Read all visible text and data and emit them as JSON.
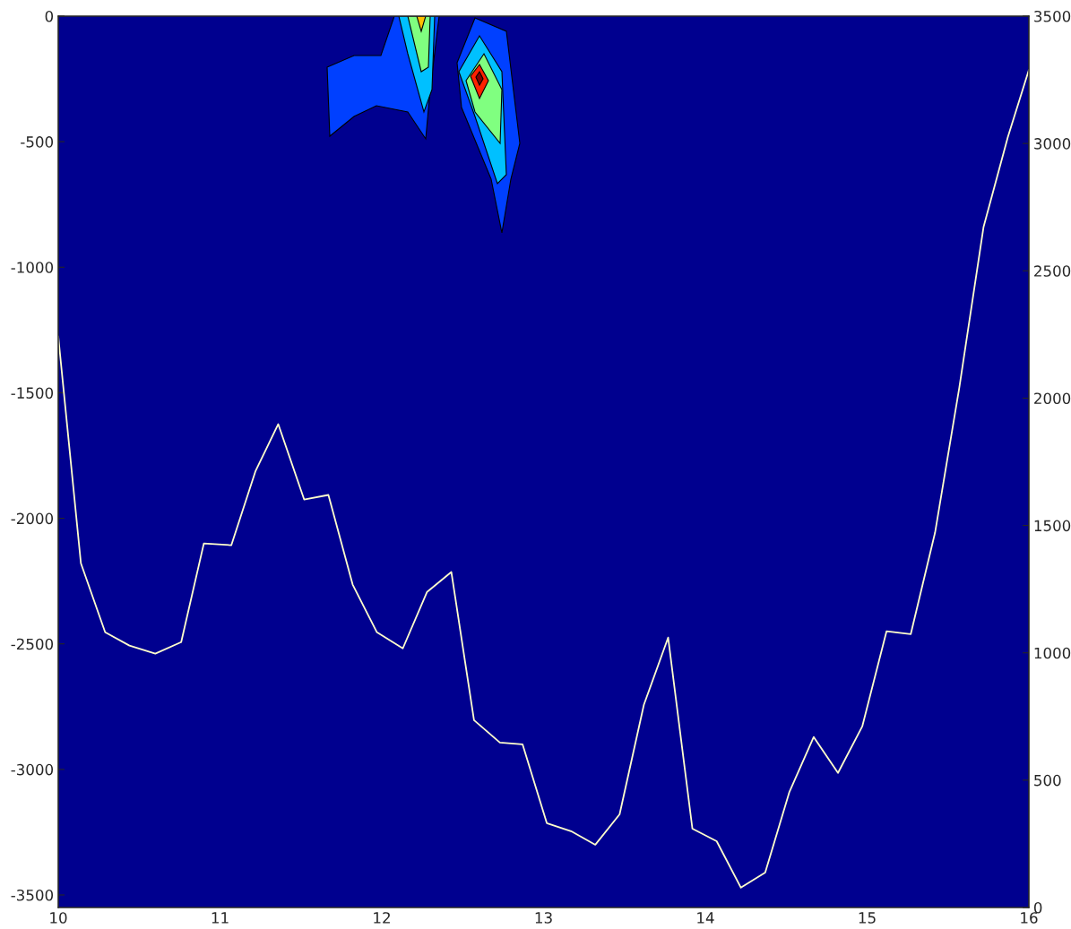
{
  "chart_data": {
    "type": "line",
    "x": [
      10,
      10.14,
      10.29,
      10.44,
      10.6,
      10.76,
      10.9,
      11.07,
      11.22,
      11.36,
      11.52,
      11.67,
      11.82,
      11.97,
      12.13,
      12.28,
      12.43,
      12.57,
      12.73,
      12.87,
      13.02,
      13.17,
      13.32,
      13.47,
      13.62,
      13.77,
      13.92,
      14.07,
      14.22,
      14.37,
      14.52,
      14.67,
      14.82,
      14.97,
      15.12,
      15.27,
      15.42,
      15.57,
      15.72,
      15.87,
      16
    ],
    "series": [
      {
        "color": "#ffffcc",
        "values": [
          -1275,
          -2179,
          -2454,
          -2507,
          -2539,
          -2493,
          -2100,
          -2107,
          -1811,
          -1625,
          -1925,
          -1907,
          -2264,
          -2454,
          -2518,
          -2293,
          -2214,
          -2804,
          -2893,
          -2900,
          -3214,
          -3246,
          -3300,
          -3179,
          -2743,
          -2475,
          -3236,
          -3286,
          -3471,
          -3411,
          -3089,
          -2871,
          -3014,
          -2829,
          -2450,
          -2461,
          -2057,
          -1479,
          -839,
          -482,
          -214
        ]
      }
    ],
    "xlim": [
      10,
      16
    ],
    "xticks": [
      10,
      11,
      12,
      13,
      14,
      15,
      16
    ],
    "ylim": [
      -3550,
      0
    ],
    "yticks": [
      -3500,
      -3000,
      -2500,
      -2000,
      -1500,
      -1000,
      -500,
      0
    ],
    "y2lim": [
      0,
      3500
    ],
    "y2ticks": [
      0,
      500,
      1000,
      1500,
      2000,
      2500,
      3000,
      3500
    ],
    "grid": false,
    "legend": false,
    "marker": "none",
    "line_style": "solid"
  }
}
